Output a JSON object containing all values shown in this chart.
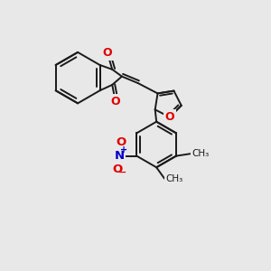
{
  "bg": "#e8e8e8",
  "bc": "#1a1a1a",
  "red": "#e00000",
  "blue": "#0000cc",
  "bw": 1.4,
  "xlim": [
    0,
    10
  ],
  "ylim": [
    0,
    10
  ]
}
